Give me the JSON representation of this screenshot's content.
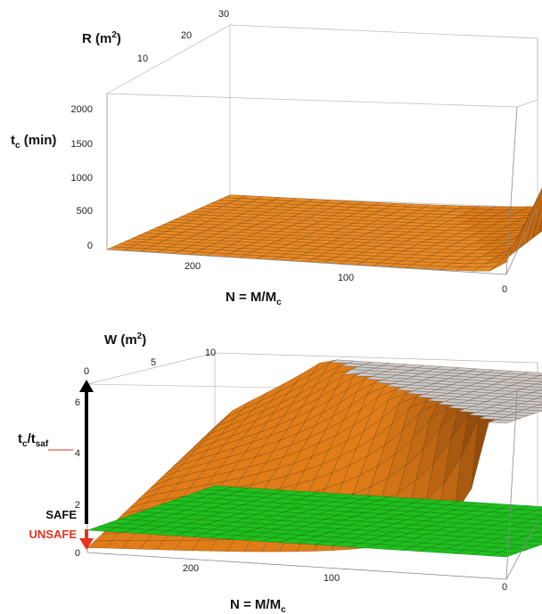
{
  "colors": {
    "surface": "#e07d18",
    "surface_light": "#f3a03a",
    "surface_dark": "#7a3c0a",
    "safe_plane": "#1fbf1f",
    "cap": "#c8c8c8",
    "safe_text": "#111111",
    "unsafe_text": "#e8321e",
    "arrow_safe": "#000000",
    "arrow_unsafe": "#e8321e"
  },
  "chart_data": [
    {
      "type": "surface3d",
      "title": "",
      "xlabel": "N = M/M",
      "xlabel_sub": "c",
      "ylabel_main": "R (m",
      "ylabel_sup": "2",
      "ylabel_close": ")",
      "zlabel_main": "t",
      "zlabel_sub": "c",
      "zlabel_rest": " (min)",
      "x_ticks": [
        "200",
        "100",
        "0"
      ],
      "y_ticks": [
        "10",
        "20",
        "30"
      ],
      "z_ticks": [
        "0",
        "500",
        "1000",
        "1500",
        "2000"
      ],
      "xlim": [
        0,
        260
      ],
      "ylim": [
        0,
        30
      ],
      "zlim": [
        0,
        2150
      ],
      "surface_model": "z = k * R / (N + 1.5), clipped at zlim max",
      "k": 140
    },
    {
      "type": "surface3d",
      "title": "",
      "xlabel": "N = M/M",
      "xlabel_sub": "c",
      "ylabel_main": "W (m",
      "ylabel_sup": "2",
      "ylabel_close": ")",
      "zlabel_main": "t",
      "zlabel_sub": "c",
      "zlabel_mid": "/t",
      "zlabel_sub2": "saf",
      "x_ticks": [
        "200",
        "100",
        "0"
      ],
      "y_ticks": [
        "0",
        "5",
        "10"
      ],
      "z_ticks": [
        "0",
        "2",
        "4",
        "6"
      ],
      "xlim": [
        0,
        260
      ],
      "ylim": [
        0,
        10
      ],
      "zlim": [
        0,
        7
      ],
      "surface_model": "z = k * W / (N + 1.5), clipped at zlim max",
      "k": 90,
      "threshold_plane": {
        "z": 1,
        "label": "SAFE / UNSAFE boundary"
      },
      "safe_label": "SAFE",
      "unsafe_label": "UNSAFE"
    }
  ]
}
